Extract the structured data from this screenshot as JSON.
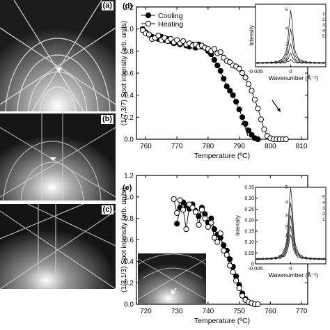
{
  "rheed_panels": [
    {
      "label": "(a)"
    },
    {
      "label": "(b)"
    },
    {
      "label": "(c)"
    }
  ],
  "colors": {
    "cooling": "#000000",
    "heating": "#ffffff",
    "axis": "#000000",
    "rheed_bg": "#1b1b1b"
  },
  "chart_data": [
    {
      "type": "line",
      "panel_label": "(d)",
      "ylabel": "(1/7,3/7) Spot intensity (arb. units)",
      "xlabel": "Temperature (ºC)",
      "xlim": [
        757,
        812
      ],
      "ylim": [
        0,
        1.2
      ],
      "xticks": [
        760,
        770,
        780,
        790,
        800,
        810
      ],
      "yticks": [
        0.0,
        0.2,
        0.4,
        0.6,
        0.8,
        1.0,
        1.2
      ],
      "legend": {
        "placement": "top-left",
        "entries": [
          "Cooling",
          "Heating"
        ]
      },
      "series": [
        {
          "name": "Cooling",
          "marker": "filled-circle",
          "x": [
            759,
            760,
            761,
            762,
            763,
            764,
            765,
            766,
            767,
            768,
            769,
            770,
            771,
            772,
            773,
            774,
            775,
            776,
            777,
            778,
            779,
            780,
            781,
            782,
            783,
            784,
            785,
            786,
            787,
            788,
            789,
            790,
            791,
            792,
            793,
            794,
            795,
            796
          ],
          "y": [
            1.0,
            0.97,
            0.95,
            0.93,
            0.92,
            0.91,
            0.93,
            0.9,
            0.91,
            0.89,
            0.87,
            0.88,
            0.86,
            0.88,
            0.85,
            0.84,
            0.86,
            0.83,
            0.86,
            0.84,
            0.83,
            0.8,
            0.77,
            0.72,
            0.67,
            0.62,
            0.55,
            0.48,
            0.44,
            0.4,
            0.34,
            0.27,
            0.2,
            0.14,
            0.08,
            0.04,
            0.01,
            0.0
          ]
        },
        {
          "name": "Heating",
          "marker": "open-circle",
          "x": [
            759,
            760,
            761,
            762,
            763,
            764,
            765,
            766,
            767,
            768,
            769,
            770,
            771,
            772,
            773,
            774,
            775,
            776,
            777,
            778,
            779,
            780,
            781,
            782,
            783,
            784,
            785,
            786,
            787,
            788,
            789,
            790,
            791,
            792,
            793,
            794,
            795,
            796,
            797,
            798,
            799,
            800,
            801,
            802,
            803,
            804,
            805
          ],
          "y": [
            0.99,
            0.96,
            0.95,
            0.91,
            0.92,
            0.94,
            0.9,
            0.92,
            0.89,
            0.91,
            0.88,
            0.9,
            0.87,
            0.89,
            0.86,
            0.87,
            0.85,
            0.86,
            0.84,
            0.85,
            0.83,
            0.82,
            0.8,
            0.82,
            0.78,
            0.79,
            0.74,
            0.71,
            0.7,
            0.67,
            0.66,
            0.64,
            0.6,
            0.56,
            0.5,
            0.44,
            0.36,
            0.28,
            0.18,
            0.09,
            0.03,
            0.01,
            0.0,
            0.0,
            0.0,
            0.0,
            0.0
          ]
        }
      ],
      "annotations": [
        {
          "type": "arrow",
          "direction": "down-right",
          "label": "heating arrow"
        },
        {
          "type": "arrow",
          "direction": "up-left",
          "label": "cooling arrow"
        }
      ],
      "inset": {
        "type": "line",
        "xlabel": "Wavenumber (Å⁻¹)",
        "ylabel": "Intensity",
        "xlim": [
          -0.005,
          0.005
        ],
        "xticks": [
          -0.005,
          0
        ],
        "xticklabels": [
          "-0.005",
          "0"
        ],
        "ylim": [
          0,
          1.0
        ],
        "yticks": [],
        "peak_labels": [
          "1",
          "2",
          "3",
          "4",
          "5"
        ],
        "legend_entries": [
          "1:",
          "2:",
          "3:",
          "4:",
          "5:"
        ],
        "series": [
          {
            "name": "1",
            "peak": 0.05
          },
          {
            "name": "2",
            "peak": 0.15
          },
          {
            "name": "3",
            "peak": 0.3
          },
          {
            "name": "4",
            "peak": 0.55
          },
          {
            "name": "5",
            "peak": 0.85
          }
        ]
      }
    },
    {
      "type": "line",
      "panel_label": "(e)",
      "ylabel": "(1/3,1/3) Spot intensity (arb. units)",
      "xlabel": "Temperature (ºC)",
      "xlim": [
        717,
        772
      ],
      "ylim": [
        0,
        1.2
      ],
      "xticks": [
        720,
        730,
        740,
        750,
        760,
        770
      ],
      "yticks": [
        0.0,
        0.2,
        0.4,
        0.6,
        0.8,
        1.0,
        1.2
      ],
      "series": [
        {
          "name": "Cooling",
          "marker": "filled-circle",
          "x": [
            730,
            731,
            732,
            733,
            734,
            735,
            736,
            737,
            738,
            739,
            740,
            741,
            742,
            743,
            744,
            745,
            746,
            747,
            748,
            749,
            750,
            751,
            752,
            753,
            754,
            755
          ],
          "y": [
            0.75,
            0.9,
            0.95,
            0.92,
            0.89,
            0.93,
            0.87,
            0.82,
            0.9,
            0.84,
            0.76,
            0.8,
            0.7,
            0.65,
            0.62,
            0.55,
            0.5,
            0.42,
            0.35,
            0.26,
            0.18,
            0.1,
            0.05,
            0.02,
            0.01,
            0.0
          ]
        },
        {
          "name": "Heating",
          "marker": "open-circle",
          "x": [
            729,
            730,
            731,
            732,
            733,
            734,
            735,
            736,
            737,
            738,
            739,
            740,
            741,
            742,
            743,
            744,
            745,
            746,
            747,
            748,
            749,
            750,
            751,
            752,
            753,
            754,
            755,
            756
          ],
          "y": [
            0.98,
            0.85,
            0.97,
            0.88,
            0.7,
            0.93,
            0.9,
            0.86,
            0.74,
            0.88,
            0.8,
            0.72,
            0.76,
            0.62,
            0.58,
            0.66,
            0.5,
            0.46,
            0.36,
            0.3,
            0.22,
            0.15,
            0.08,
            0.04,
            0.02,
            0.01,
            0.0,
            0.0
          ]
        }
      ],
      "inset": {
        "type": "line",
        "xlabel": "Wavenumber (Å⁻¹)",
        "ylabel": "Intensity",
        "xlim": [
          -0.005,
          0.005
        ],
        "xticks": [
          -0.005,
          0
        ],
        "xticklabels": [
          "-0.005",
          "0"
        ],
        "ylim": [
          0,
          0.35
        ],
        "yticks": [
          0,
          0.05,
          0.1,
          0.15,
          0.2,
          0.25,
          0.3,
          0.35
        ],
        "yticklabels": [
          "0",
          "0.05",
          "0.10",
          "0.15",
          "0.20",
          "0.25",
          "0.30",
          "0.35"
        ],
        "peak_labels": [
          "1",
          "2",
          "3",
          "4",
          "5"
        ],
        "legend_entries": [
          "5",
          "4",
          "3",
          "2",
          "1"
        ],
        "series": [
          {
            "name": "1",
            "peak": 0.11
          },
          {
            "name": "2",
            "peak": 0.15
          },
          {
            "name": "3",
            "peak": 0.2
          },
          {
            "name": "4",
            "peak": 0.26
          },
          {
            "name": "5",
            "peak": 0.33
          }
        ]
      }
    }
  ]
}
